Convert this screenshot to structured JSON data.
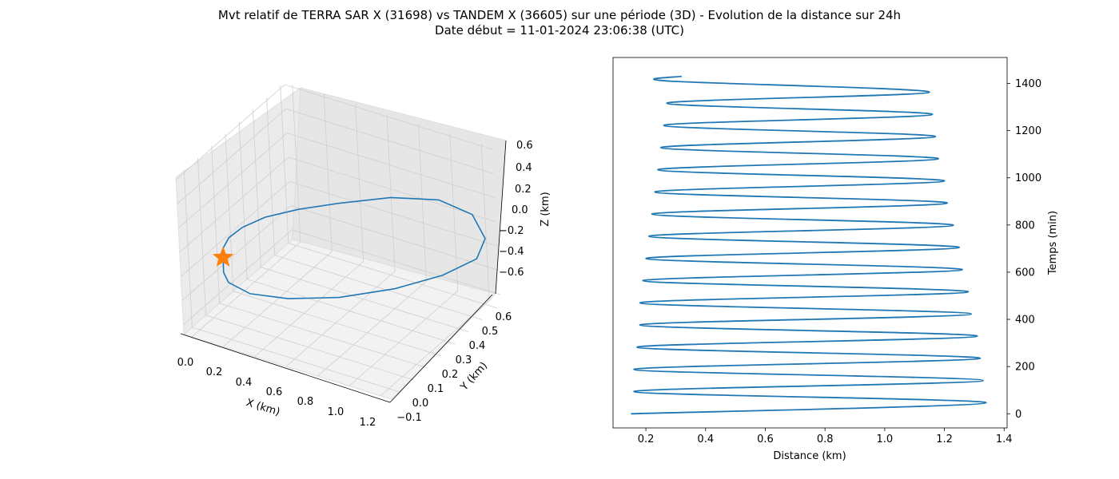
{
  "title_line_1": "Mvt relatif de TERRA SAR X (31698) vs TANDEM X (36605) sur une période (3D) - Evolution de la distance sur 24h",
  "title_line_2": "Date début = 11-01-2024 23:06:38 (UTC)",
  "colors": {
    "series": "#1f77b4",
    "marker": "#ff7f0e",
    "axis": "#000000",
    "grid": "#cfcfcf",
    "pane": "#f2f2f2"
  },
  "chart_data": [
    {
      "type": "line3d",
      "xlabel": "X (km)",
      "ylabel": "Y (km)",
      "zlabel": "Z (km)",
      "xlim": [
        -0.05,
        1.27
      ],
      "ylim": [
        -0.13,
        0.66
      ],
      "zlim": [
        -0.68,
        0.62
      ],
      "xticks": [
        "0.0",
        "0.2",
        "0.4",
        "0.6",
        "0.8",
        "1.0",
        "1.2"
      ],
      "yticks": [
        "−0.1",
        "0.0",
        "0.1",
        "0.2",
        "0.3",
        "0.4",
        "0.5",
        "0.6"
      ],
      "zticks": [
        "−0.6",
        "−0.4",
        "−0.2",
        "0.0",
        "0.2",
        "0.4",
        "0.6"
      ],
      "grid": true,
      "marker": {
        "shape": "star",
        "x": 0.08,
        "y": 0.5,
        "z": -0.15
      },
      "path": [
        {
          "x": 0.08,
          "y": 0.5,
          "z": -0.15
        },
        {
          "x": 0.1,
          "y": 0.52,
          "z": -0.05
        },
        {
          "x": 0.17,
          "y": 0.55,
          "z": 0.1
        },
        {
          "x": 0.28,
          "y": 0.57,
          "z": 0.25
        },
        {
          "x": 0.42,
          "y": 0.56,
          "z": 0.38
        },
        {
          "x": 0.58,
          "y": 0.5,
          "z": 0.45
        },
        {
          "x": 0.75,
          "y": 0.4,
          "z": 0.47
        },
        {
          "x": 0.95,
          "y": 0.25,
          "z": 0.45
        },
        {
          "x": 1.12,
          "y": 0.1,
          "z": 0.35
        },
        {
          "x": 1.22,
          "y": -0.02,
          "z": 0.15
        },
        {
          "x": 1.24,
          "y": -0.08,
          "z": -0.1
        },
        {
          "x": 1.16,
          "y": -0.1,
          "z": -0.32
        },
        {
          "x": 0.98,
          "y": -0.05,
          "z": -0.48
        },
        {
          "x": 0.76,
          "y": 0.05,
          "z": -0.58
        },
        {
          "x": 0.52,
          "y": 0.18,
          "z": -0.62
        },
        {
          "x": 0.3,
          "y": 0.3,
          "z": -0.6
        },
        {
          "x": 0.15,
          "y": 0.4,
          "z": -0.52
        },
        {
          "x": 0.07,
          "y": 0.46,
          "z": -0.4
        },
        {
          "x": 0.06,
          "y": 0.48,
          "z": -0.3
        },
        {
          "x": 0.07,
          "y": 0.49,
          "z": -0.22
        },
        {
          "x": 0.08,
          "y": 0.5,
          "z": -0.15
        }
      ]
    },
    {
      "type": "line",
      "xlabel": "Distance (km)",
      "ylabel": "Temps (min)",
      "xlim": [
        0.09,
        1.41
      ],
      "ylim": [
        -60,
        1510
      ],
      "xticks": [
        0.2,
        0.4,
        0.6,
        0.8,
        1.0,
        1.2,
        1.4
      ],
      "xtick_labels": [
        "0.2",
        "0.4",
        "0.6",
        "0.8",
        "1.0",
        "1.2",
        "1.4"
      ],
      "yticks": [
        0,
        200,
        400,
        600,
        800,
        1000,
        1200,
        1400
      ],
      "ytick_labels": [
        "0",
        "200",
        "400",
        "600",
        "800",
        "1000",
        "1200",
        "1400"
      ],
      "yaxis_position": "right",
      "grid": false,
      "series": [
        {
          "points": [
            {
              "x": 0.15,
              "y": 0
            },
            {
              "x": 1.34,
              "y": 47
            },
            {
              "x": 0.16,
              "y": 94
            },
            {
              "x": 1.33,
              "y": 141
            },
            {
              "x": 0.16,
              "y": 188
            },
            {
              "x": 1.32,
              "y": 235
            },
            {
              "x": 0.17,
              "y": 282
            },
            {
              "x": 1.31,
              "y": 329
            },
            {
              "x": 0.18,
              "y": 376
            },
            {
              "x": 1.29,
              "y": 423
            },
            {
              "x": 0.18,
              "y": 470
            },
            {
              "x": 1.28,
              "y": 517
            },
            {
              "x": 0.19,
              "y": 564
            },
            {
              "x": 1.26,
              "y": 611
            },
            {
              "x": 0.2,
              "y": 658
            },
            {
              "x": 1.25,
              "y": 705
            },
            {
              "x": 0.21,
              "y": 752
            },
            {
              "x": 1.23,
              "y": 799
            },
            {
              "x": 0.22,
              "y": 846
            },
            {
              "x": 1.21,
              "y": 893
            },
            {
              "x": 0.23,
              "y": 940
            },
            {
              "x": 1.2,
              "y": 987
            },
            {
              "x": 0.24,
              "y": 1034
            },
            {
              "x": 1.18,
              "y": 1081
            },
            {
              "x": 0.25,
              "y": 1128
            },
            {
              "x": 1.17,
              "y": 1175
            },
            {
              "x": 0.26,
              "y": 1222
            },
            {
              "x": 1.16,
              "y": 1269
            },
            {
              "x": 0.27,
              "y": 1316
            },
            {
              "x": 1.15,
              "y": 1363
            },
            {
              "x": 0.28,
              "y": 1410
            },
            {
              "x": 0.32,
              "y": 1430
            }
          ]
        }
      ]
    }
  ]
}
